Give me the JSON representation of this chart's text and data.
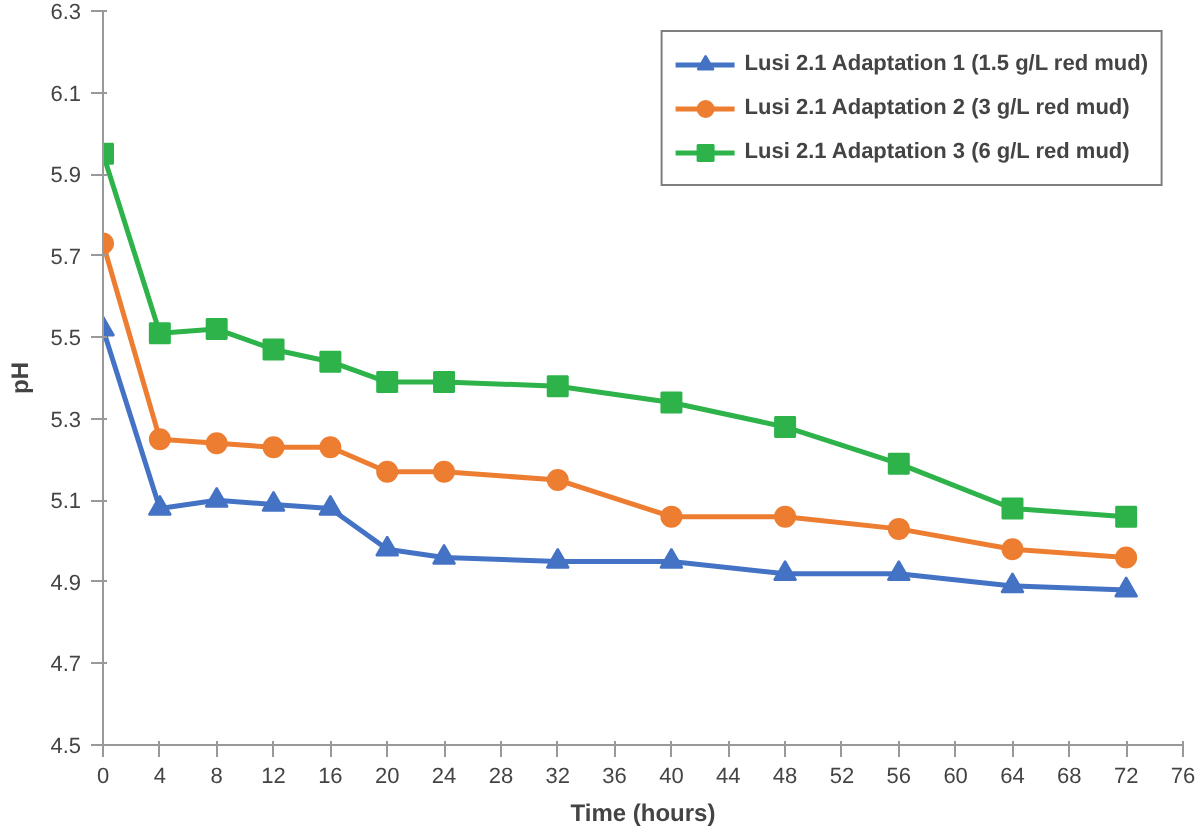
{
  "chart_data": {
    "type": "line",
    "xlabel": "Time (hours)",
    "ylabel": "pH",
    "x": [
      0,
      4,
      8,
      12,
      16,
      20,
      24,
      32,
      40,
      48,
      56,
      64,
      72
    ],
    "xlim": [
      0,
      76
    ],
    "xticks": [
      0,
      4,
      8,
      12,
      16,
      20,
      24,
      28,
      32,
      36,
      40,
      44,
      48,
      52,
      56,
      60,
      64,
      68,
      72,
      76
    ],
    "ylim": [
      4.5,
      6.3
    ],
    "yticks": [
      {
        "value": 4.5,
        "label": "4.5"
      },
      {
        "value": 4.7,
        "label": "4.7"
      },
      {
        "value": 4.9,
        "label": "4.9"
      },
      {
        "value": 5.1,
        "label": "5.1"
      },
      {
        "value": 5.3,
        "label": "5.3"
      },
      {
        "value": 5.5,
        "label": "5.5"
      },
      {
        "value": 5.7,
        "label": "5.7"
      },
      {
        "value": 5.9,
        "label": "5.9"
      },
      {
        "value": 6.1,
        "label": "6.1"
      },
      {
        "value": 6.3,
        "label": "6.3"
      }
    ],
    "grid": false,
    "legend": "top right",
    "series": [
      {
        "name": "Lusi 2.1 Adaptation 1 (1.5 g/L red mud)",
        "color": "#4472c4",
        "marker": "triangle",
        "values": [
          5.52,
          5.08,
          5.1,
          5.09,
          5.08,
          4.98,
          4.96,
          4.95,
          4.95,
          4.92,
          4.92,
          4.89,
          4.88
        ]
      },
      {
        "name": "Lusi 2.1 Adaptation 2 (3 g/L red mud)",
        "color": "#ed7d31",
        "marker": "circle",
        "values": [
          5.73,
          5.25,
          5.24,
          5.23,
          5.23,
          5.17,
          5.17,
          5.15,
          5.06,
          5.06,
          5.03,
          4.98,
          4.96
        ]
      },
      {
        "name": "Lusi 2.1 Adaptation 3 (6 g/L red mud)",
        "color": "#2db34a",
        "marker": "square",
        "values": [
          5.95,
          5.51,
          5.52,
          5.47,
          5.44,
          5.39,
          5.39,
          5.38,
          5.34,
          5.28,
          5.19,
          5.08,
          5.06
        ]
      }
    ]
  }
}
